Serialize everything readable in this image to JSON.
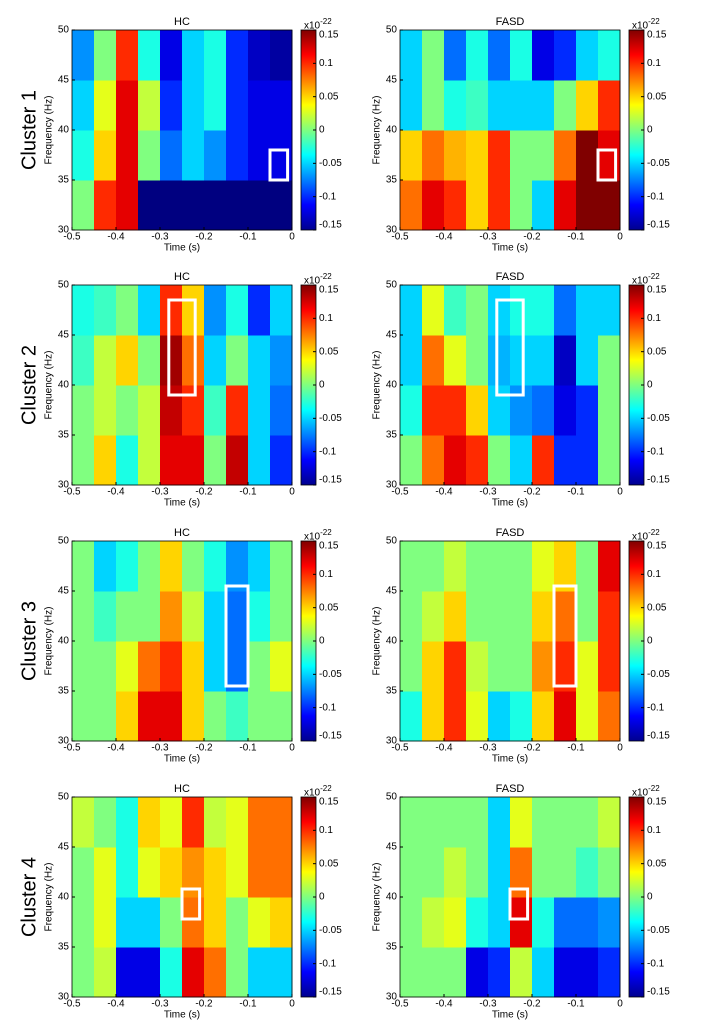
{
  "clusters": [
    "Cluster 1",
    "Cluster 2",
    "Cluster 3",
    "Cluster 4"
  ],
  "chart_data": [
    {
      "type": "heatmap",
      "title": "HC",
      "xlabel": "Time (s)",
      "ylabel": "Frequency (Hz)",
      "x": [
        -0.475,
        -0.425,
        -0.375,
        -0.325,
        -0.275,
        -0.225,
        -0.175,
        -0.125,
        -0.075,
        -0.025
      ],
      "y": [
        32.5,
        37.5,
        42.5,
        47.5
      ],
      "values": [
        [
          0.0,
          0.1,
          0.12,
          -0.15,
          -0.15,
          -0.15,
          -0.15,
          -0.15,
          -0.15,
          -0.15
        ],
        [
          -0.03,
          0.05,
          0.12,
          0.0,
          -0.08,
          -0.05,
          -0.07,
          -0.1,
          -0.12,
          -0.12
        ],
        [
          -0.05,
          0.03,
          0.12,
          0.02,
          -0.1,
          -0.05,
          -0.03,
          -0.1,
          -0.12,
          -0.12
        ],
        [
          -0.07,
          0.0,
          0.1,
          -0.03,
          -0.12,
          -0.05,
          -0.03,
          -0.1,
          -0.13,
          -0.14
        ]
      ],
      "xlim": [
        -0.5,
        0
      ],
      "xticks": [
        -0.5,
        -0.4,
        -0.3,
        -0.2,
        -0.1,
        0
      ],
      "ylim": [
        30,
        50
      ],
      "yticks": [
        30,
        35,
        40,
        45,
        50
      ],
      "zlim": [
        -0.15,
        0.15
      ],
      "zticks": [
        -0.15,
        -0.1,
        -0.05,
        0,
        0.05,
        0.1,
        0.15
      ],
      "colorbar_multiplier": "x10",
      "colorbar_exponent": "-22",
      "highlight": {
        "x": [
          -0.05,
          -0.01
        ],
        "y": [
          35,
          38
        ]
      }
    },
    {
      "type": "heatmap",
      "title": "FASD",
      "xlabel": "Time (s)",
      "ylabel": "Frequency (Hz)",
      "x": [
        -0.475,
        -0.425,
        -0.375,
        -0.325,
        -0.275,
        -0.225,
        -0.175,
        -0.125,
        -0.075,
        -0.025
      ],
      "y": [
        32.5,
        37.5,
        42.5,
        47.5
      ],
      "values": [
        [
          0.08,
          0.12,
          0.1,
          0.05,
          0.1,
          0.0,
          -0.05,
          0.12,
          0.15,
          0.15
        ],
        [
          0.05,
          0.08,
          0.06,
          0.05,
          0.1,
          0.0,
          0.0,
          0.08,
          0.15,
          0.12
        ],
        [
          -0.05,
          0.0,
          -0.03,
          -0.02,
          -0.05,
          -0.05,
          -0.05,
          0.0,
          0.05,
          0.1
        ],
        [
          -0.05,
          0.0,
          -0.08,
          -0.03,
          -0.08,
          -0.03,
          -0.12,
          -0.1,
          -0.05,
          -0.03
        ]
      ],
      "xlim": [
        -0.5,
        0
      ],
      "xticks": [
        -0.5,
        -0.4,
        -0.3,
        -0.2,
        -0.1,
        0
      ],
      "ylim": [
        30,
        50
      ],
      "yticks": [
        30,
        35,
        40,
        45,
        50
      ],
      "zlim": [
        -0.15,
        0.15
      ],
      "zticks": [
        -0.15,
        -0.1,
        -0.05,
        0,
        0.05,
        0.1,
        0.15
      ],
      "colorbar_multiplier": "x10",
      "colorbar_exponent": "-22",
      "highlight": {
        "x": [
          -0.05,
          -0.01
        ],
        "y": [
          35,
          38
        ]
      }
    },
    {
      "type": "heatmap",
      "title": "HC",
      "xlabel": "Time (s)",
      "ylabel": "Frequency (Hz)",
      "x": [
        -0.475,
        -0.425,
        -0.375,
        -0.325,
        -0.275,
        -0.225,
        -0.175,
        -0.125,
        -0.075,
        -0.025
      ],
      "y": [
        32.5,
        37.5,
        42.5,
        47.5
      ],
      "values": [
        [
          0.0,
          0.05,
          -0.03,
          0.02,
          0.12,
          0.12,
          0.0,
          0.13,
          -0.05,
          -0.1
        ],
        [
          0.0,
          0.02,
          0.0,
          0.02,
          0.13,
          0.1,
          -0.02,
          0.1,
          -0.05,
          -0.08
        ],
        [
          -0.02,
          0.02,
          0.05,
          0.0,
          0.14,
          0.08,
          -0.05,
          0.0,
          -0.05,
          -0.07
        ],
        [
          -0.03,
          -0.02,
          0.0,
          -0.05,
          0.1,
          0.05,
          -0.07,
          -0.03,
          -0.1,
          -0.05
        ]
      ],
      "xlim": [
        -0.5,
        0
      ],
      "xticks": [
        -0.5,
        -0.4,
        -0.3,
        -0.2,
        -0.1,
        0
      ],
      "ylim": [
        30,
        50
      ],
      "yticks": [
        30,
        35,
        40,
        45,
        50
      ],
      "zlim": [
        -0.15,
        0.15
      ],
      "zticks": [
        -0.15,
        -0.1,
        -0.05,
        0,
        0.05,
        0.1,
        0.15
      ],
      "colorbar_multiplier": "x10",
      "colorbar_exponent": "-22",
      "highlight": {
        "x": [
          -0.28,
          -0.22
        ],
        "y": [
          39,
          48.5
        ]
      }
    },
    {
      "type": "heatmap",
      "title": "FASD",
      "xlabel": "Time (s)",
      "ylabel": "Frequency (Hz)",
      "x": [
        -0.475,
        -0.425,
        -0.375,
        -0.325,
        -0.275,
        -0.225,
        -0.175,
        -0.125,
        -0.075,
        -0.025
      ],
      "y": [
        32.5,
        37.5,
        42.5,
        47.5
      ],
      "values": [
        [
          0.0,
          0.08,
          0.12,
          0.1,
          0.0,
          -0.05,
          0.1,
          -0.1,
          -0.1,
          0.0
        ],
        [
          -0.03,
          0.1,
          0.1,
          0.05,
          -0.05,
          -0.07,
          -0.08,
          -0.12,
          -0.1,
          0.0
        ],
        [
          -0.05,
          0.08,
          0.03,
          0.0,
          -0.06,
          -0.05,
          -0.05,
          -0.13,
          -0.05,
          0.0
        ],
        [
          -0.05,
          0.03,
          -0.02,
          0.0,
          -0.05,
          -0.03,
          -0.03,
          -0.08,
          -0.05,
          -0.05
        ]
      ],
      "xlim": [
        -0.5,
        0
      ],
      "xticks": [
        -0.5,
        -0.4,
        -0.3,
        -0.2,
        -0.1,
        0
      ],
      "ylim": [
        30,
        50
      ],
      "yticks": [
        30,
        35,
        40,
        45,
        50
      ],
      "zlim": [
        -0.15,
        0.15
      ],
      "zticks": [
        -0.15,
        -0.1,
        -0.05,
        0,
        0.05,
        0.1,
        0.15
      ],
      "colorbar_multiplier": "x10",
      "colorbar_exponent": "-22",
      "highlight": {
        "x": [
          -0.28,
          -0.22
        ],
        "y": [
          39,
          48.5
        ]
      }
    },
    {
      "type": "heatmap",
      "title": "HC",
      "xlabel": "Time (s)",
      "ylabel": "Frequency (Hz)",
      "x": [
        -0.475,
        -0.425,
        -0.375,
        -0.325,
        -0.275,
        -0.225,
        -0.175,
        -0.125,
        -0.075,
        -0.025
      ],
      "y": [
        32.5,
        37.5,
        42.5,
        47.5
      ],
      "values": [
        [
          0.0,
          0.0,
          0.05,
          0.12,
          0.12,
          0.05,
          0.0,
          -0.02,
          0.0,
          0.0
        ],
        [
          0.0,
          0.0,
          0.03,
          0.08,
          0.1,
          0.05,
          -0.05,
          -0.08,
          0.0,
          0.03
        ],
        [
          0.0,
          -0.02,
          0.0,
          0.0,
          0.07,
          0.02,
          -0.05,
          -0.08,
          -0.03,
          0.0
        ],
        [
          0.0,
          -0.05,
          -0.03,
          0.0,
          0.05,
          0.0,
          -0.03,
          -0.07,
          -0.05,
          0.0
        ]
      ],
      "xlim": [
        -0.5,
        0
      ],
      "xticks": [
        -0.5,
        -0.4,
        -0.3,
        -0.2,
        -0.1,
        0
      ],
      "ylim": [
        30,
        50
      ],
      "yticks": [
        30,
        35,
        40,
        45,
        50
      ],
      "zlim": [
        -0.15,
        0.15
      ],
      "zticks": [
        -0.15,
        -0.1,
        -0.05,
        0,
        0.05,
        0.1,
        0.15
      ],
      "colorbar_multiplier": "x10",
      "colorbar_exponent": "-22",
      "highlight": {
        "x": [
          -0.15,
          -0.1
        ],
        "y": [
          35.5,
          45.5
        ]
      }
    },
    {
      "type": "heatmap",
      "title": "FASD",
      "xlabel": "Time (s)",
      "ylabel": "Frequency (Hz)",
      "x": [
        -0.475,
        -0.425,
        -0.375,
        -0.325,
        -0.275,
        -0.225,
        -0.175,
        -0.125,
        -0.075,
        -0.025
      ],
      "y": [
        32.5,
        37.5,
        42.5,
        47.5
      ],
      "values": [
        [
          -0.03,
          0.05,
          0.1,
          0.03,
          -0.05,
          -0.03,
          0.05,
          0.12,
          0.03,
          0.08
        ],
        [
          0.0,
          0.05,
          0.1,
          0.02,
          0.0,
          0.0,
          0.07,
          0.1,
          0.03,
          0.1
        ],
        [
          0.0,
          0.02,
          0.05,
          0.0,
          0.0,
          0.0,
          0.05,
          0.08,
          0.0,
          0.1
        ],
        [
          0.0,
          0.0,
          0.02,
          0.0,
          0.0,
          0.0,
          0.03,
          0.05,
          0.0,
          0.12
        ]
      ],
      "xlim": [
        -0.5,
        0
      ],
      "xticks": [
        -0.5,
        -0.4,
        -0.3,
        -0.2,
        -0.1,
        0
      ],
      "ylim": [
        30,
        50
      ],
      "yticks": [
        30,
        35,
        40,
        45,
        50
      ],
      "zlim": [
        -0.15,
        0.15
      ],
      "zticks": [
        -0.15,
        -0.1,
        -0.05,
        0,
        0.05,
        0.1,
        0.15
      ],
      "colorbar_multiplier": "x10",
      "colorbar_exponent": "-22",
      "highlight": {
        "x": [
          -0.15,
          -0.1
        ],
        "y": [
          35.5,
          45.5
        ]
      }
    },
    {
      "type": "heatmap",
      "title": "HC",
      "xlabel": "Time (s)",
      "ylabel": "Frequency (Hz)",
      "x": [
        -0.475,
        -0.425,
        -0.375,
        -0.325,
        -0.275,
        -0.225,
        -0.175,
        -0.125,
        -0.075,
        -0.025
      ],
      "y": [
        32.5,
        37.5,
        42.5,
        47.5
      ],
      "values": [
        [
          0.0,
          0.02,
          -0.12,
          -0.12,
          -0.03,
          0.12,
          0.08,
          0.0,
          -0.05,
          -0.05
        ],
        [
          0.0,
          0.03,
          -0.05,
          -0.05,
          0.0,
          0.08,
          0.05,
          0.0,
          0.03,
          0.05
        ],
        [
          0.0,
          0.03,
          -0.03,
          0.03,
          0.05,
          0.07,
          0.05,
          0.03,
          0.08,
          0.08
        ],
        [
          0.02,
          0.0,
          -0.03,
          0.05,
          0.03,
          0.1,
          0.02,
          0.03,
          0.08,
          0.08
        ]
      ],
      "xlim": [
        -0.5,
        0
      ],
      "xticks": [
        -0.5,
        -0.4,
        -0.3,
        -0.2,
        -0.1,
        0
      ],
      "ylim": [
        30,
        50
      ],
      "yticks": [
        30,
        35,
        40,
        45,
        50
      ],
      "zlim": [
        -0.15,
        0.15
      ],
      "zticks": [
        -0.15,
        -0.1,
        -0.05,
        0,
        0.05,
        0.1,
        0.15
      ],
      "colorbar_multiplier": "x10",
      "colorbar_exponent": "-22",
      "highlight": {
        "x": [
          -0.25,
          -0.21
        ],
        "y": [
          37.8,
          40.8
        ]
      }
    },
    {
      "type": "heatmap",
      "title": "FASD",
      "xlabel": "Time (s)",
      "ylabel": "Frequency (Hz)",
      "x": [
        -0.475,
        -0.425,
        -0.375,
        -0.325,
        -0.275,
        -0.225,
        -0.175,
        -0.125,
        -0.075,
        -0.025
      ],
      "y": [
        32.5,
        37.5,
        42.5,
        47.5
      ],
      "values": [
        [
          0.0,
          0.0,
          0.0,
          -0.12,
          -0.1,
          0.02,
          -0.05,
          -0.12,
          -0.12,
          -0.1
        ],
        [
          0.0,
          0.02,
          0.03,
          -0.03,
          -0.05,
          0.12,
          -0.03,
          -0.08,
          -0.08,
          -0.07
        ],
        [
          0.0,
          0.0,
          0.02,
          0.0,
          -0.05,
          0.08,
          0.0,
          0.0,
          -0.02,
          0.0
        ],
        [
          0.0,
          0.0,
          0.0,
          0.0,
          -0.05,
          0.03,
          0.0,
          0.0,
          0.0,
          0.02
        ]
      ],
      "xlim": [
        -0.5,
        0
      ],
      "xticks": [
        -0.5,
        -0.4,
        -0.3,
        -0.2,
        -0.1,
        0
      ],
      "ylim": [
        30,
        50
      ],
      "yticks": [
        30,
        35,
        40,
        45,
        50
      ],
      "zlim": [
        -0.15,
        0.15
      ],
      "zticks": [
        -0.15,
        -0.1,
        -0.05,
        0,
        0.05,
        0.1,
        0.15
      ],
      "colorbar_multiplier": "x10",
      "colorbar_exponent": "-22",
      "highlight": {
        "x": [
          -0.25,
          -0.21
        ],
        "y": [
          37.8,
          40.8
        ]
      }
    }
  ]
}
